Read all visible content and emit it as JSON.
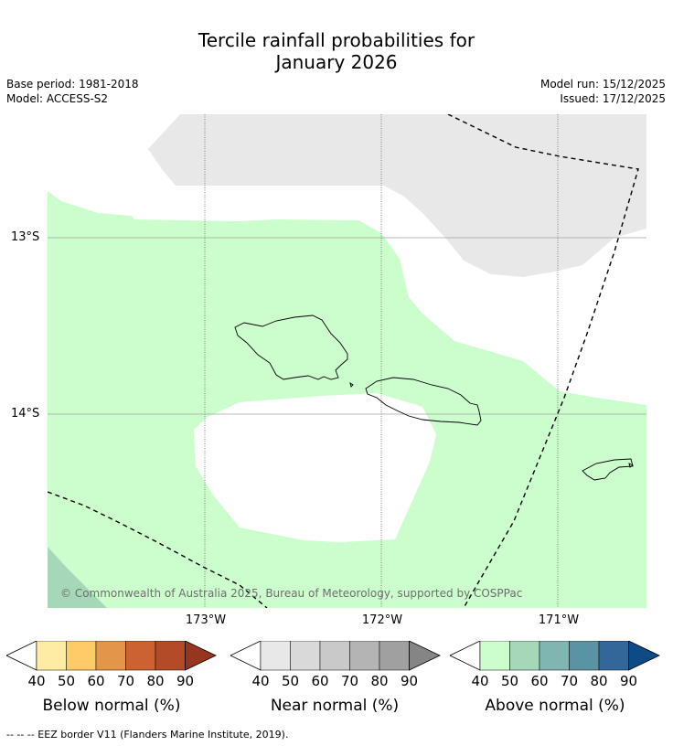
{
  "title_line1": "Tercile rainfall probabilities for",
  "title_line2": "January 2026",
  "base_period": "Base period: 1981-2018",
  "model": "Model: ACCESS-S2",
  "model_run": "Model run: 15/12/2025",
  "issued": "Issued: 17/12/2025",
  "lat_labels": [
    "13°S",
    "14°S"
  ],
  "lon_labels": [
    "173°W",
    "172°W",
    "171°W"
  ],
  "copyright": "© Commonwealth of Australia 2025, Bureau of Meteorology, supported by COSPPac",
  "colorbars": [
    {
      "title": "Below normal (%)",
      "ticks": [
        "40",
        "50",
        "60",
        "70",
        "80",
        "90"
      ],
      "colors": [
        "#ffffff",
        "#feeca4",
        "#fecb66",
        "#e3964a",
        "#cc6131",
        "#b34a28",
        "#983520"
      ]
    },
    {
      "title": "Near normal (%)",
      "ticks": [
        "40",
        "50",
        "60",
        "70",
        "80",
        "90"
      ],
      "colors": [
        "#ffffff",
        "#e8e8e8",
        "#d9d9d9",
        "#c9c9c9",
        "#b4b4b4",
        "#a0a0a0",
        "#858585"
      ]
    },
    {
      "title": "Above normal (%)",
      "ticks": [
        "40",
        "50",
        "60",
        "70",
        "80",
        "90"
      ],
      "colors": [
        "#ffffff",
        "#ccfdcc",
        "#a5d7b9",
        "#7fb6b1",
        "#5a93a3",
        "#33679a",
        "#0e4a86"
      ]
    }
  ],
  "footer": "--  --  -- EEZ border V11 (Flanders Marine Institute, 2019).",
  "colors": {
    "above_40_50": "#ccfdcc",
    "above_50_60": "#a5d7b9",
    "near_40_50": "#e8e8e8",
    "grid": "#a0a0a0"
  }
}
